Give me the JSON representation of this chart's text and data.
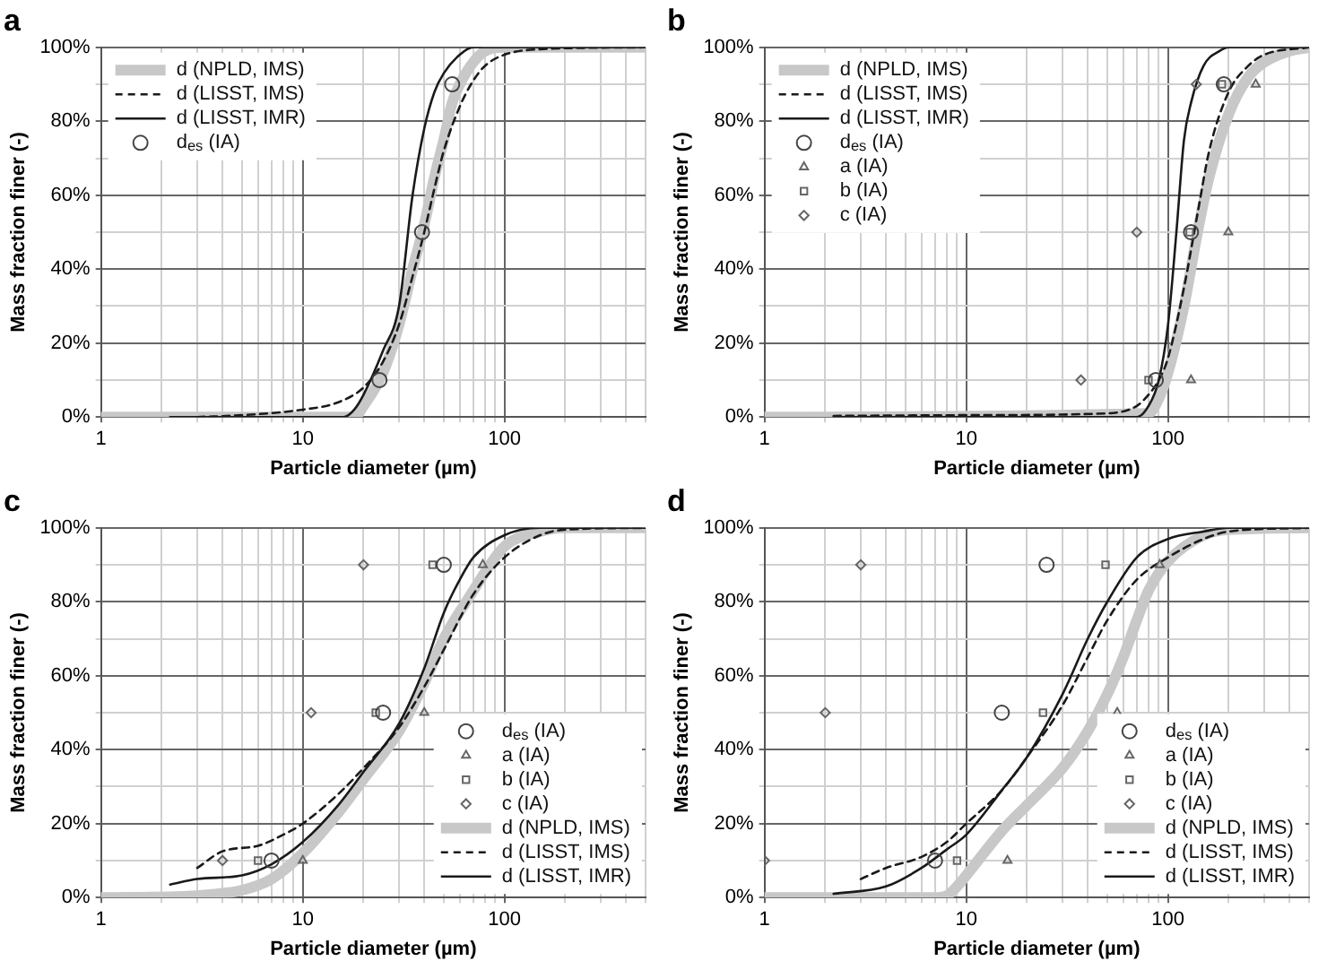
{
  "chart_data": [
    {
      "type": "line",
      "title": "a",
      "xlabel": "Particle diameter (µm)",
      "ylabel": "Mass fraction finer (-)",
      "log": "x",
      "grid": true,
      "legend": "top left",
      "xlim": [
        1,
        500
      ],
      "ylim": [
        0,
        100
      ],
      "xticks": [
        1,
        {
          "value": 2,
          "label": null
        },
        {
          "value": 3,
          "label": null
        },
        {
          "value": 4,
          "label": null
        },
        {
          "value": 5,
          "label": null
        },
        {
          "value": 6,
          "label": null
        },
        {
          "value": 7,
          "label": null
        },
        {
          "value": 8,
          "label": null
        },
        {
          "value": 9,
          "label": null
        },
        10,
        {
          "value": 20,
          "label": null
        },
        {
          "value": 30,
          "label": null
        },
        {
          "value": 40,
          "label": null
        },
        {
          "value": 50,
          "label": null
        },
        {
          "value": 60,
          "label": null
        },
        {
          "value": 70,
          "label": null
        },
        {
          "value": 80,
          "label": null
        },
        {
          "value": 90,
          "label": null
        },
        100,
        {
          "value": 200,
          "label": null
        },
        {
          "value": 300,
          "label": null
        },
        {
          "value": 400,
          "label": null
        },
        {
          "value": 500,
          "label": null
        }
      ],
      "yticks": [
        {
          "value": 0,
          "label": "0%"
        },
        {
          "value": 10,
          "label": null
        },
        {
          "value": 20,
          "label": "20%"
        },
        {
          "value": 30,
          "label": null
        },
        {
          "value": 40,
          "label": "40%"
        },
        {
          "value": 50,
          "label": null
        },
        {
          "value": 60,
          "label": "60%"
        },
        {
          "value": 70,
          "label": null
        },
        {
          "value": 80,
          "label": "80%"
        },
        {
          "value": 90,
          "label": null
        },
        {
          "value": 100,
          "label": "100%"
        }
      ],
      "series": [
        {
          "name": "d (NPLD, IMS)",
          "type": "line",
          "marker": "none",
          "line_style": "solid",
          "color": "#c8c8c8",
          "x": [
            1,
            18,
            20,
            25,
            30,
            35,
            40,
            45,
            50,
            55,
            60,
            70,
            80,
            100,
            500
          ],
          "values": [
            0,
            0,
            3,
            12,
            25,
            40,
            52,
            65,
            75,
            85,
            90,
            96,
            99,
            100,
            100
          ]
        },
        {
          "name": "d (LISST, IMS)",
          "type": "line",
          "marker": "none",
          "line_style": "dashed",
          "color": "#1a1a1a",
          "x": [
            3,
            5,
            10,
            15,
            20,
            25,
            30,
            35,
            40,
            45,
            50,
            60,
            70,
            80,
            100,
            150,
            500
          ],
          "values": [
            0,
            0.5,
            2,
            4,
            8,
            15,
            25,
            38,
            50,
            62,
            72,
            84,
            91,
            95,
            98,
            99.5,
            100
          ]
        },
        {
          "name": "d (LISST, IMR)",
          "type": "line",
          "marker": "none",
          "line_style": "solid",
          "color": "#1a1a1a",
          "x": [
            2.2,
            16,
            18,
            20,
            25,
            30,
            35,
            40,
            45,
            50,
            60,
            70,
            500
          ],
          "values": [
            0,
            0,
            2,
            6,
            18,
            30,
            60,
            78,
            88,
            93,
            98,
            100,
            100
          ]
        },
        {
          "name": "d$_{es}$ (IA)",
          "type": "scatter",
          "marker": "circle",
          "color": "#444444",
          "x": [
            24,
            39,
            55
          ],
          "values": [
            10,
            50,
            90
          ]
        }
      ]
    },
    {
      "type": "line",
      "title": "b",
      "xlabel": "Particle diameter (µm)",
      "ylabel": "Mass fraction finer (-)",
      "log": "x",
      "grid": true,
      "legend": "top left",
      "xlim": [
        1,
        500
      ],
      "ylim": [
        0,
        100
      ],
      "xticks": [
        1,
        {
          "value": 2,
          "label": null
        },
        {
          "value": 3,
          "label": null
        },
        {
          "value": 4,
          "label": null
        },
        {
          "value": 5,
          "label": null
        },
        {
          "value": 6,
          "label": null
        },
        {
          "value": 7,
          "label": null
        },
        {
          "value": 8,
          "label": null
        },
        {
          "value": 9,
          "label": null
        },
        10,
        {
          "value": 20,
          "label": null
        },
        {
          "value": 30,
          "label": null
        },
        {
          "value": 40,
          "label": null
        },
        {
          "value": 50,
          "label": null
        },
        {
          "value": 60,
          "label": null
        },
        {
          "value": 70,
          "label": null
        },
        {
          "value": 80,
          "label": null
        },
        {
          "value": 90,
          "label": null
        },
        100,
        {
          "value": 200,
          "label": null
        },
        {
          "value": 300,
          "label": null
        },
        {
          "value": 400,
          "label": null
        },
        {
          "value": 500,
          "label": null
        }
      ],
      "yticks": [
        {
          "value": 0,
          "label": "0%"
        },
        {
          "value": 10,
          "label": null
        },
        {
          "value": 20,
          "label": "20%"
        },
        {
          "value": 30,
          "label": null
        },
        {
          "value": 40,
          "label": "40%"
        },
        {
          "value": 50,
          "label": null
        },
        {
          "value": 60,
          "label": "60%"
        },
        {
          "value": 70,
          "label": null
        },
        {
          "value": 80,
          "label": "80%"
        },
        {
          "value": 90,
          "label": null
        },
        {
          "value": 100,
          "label": "100%"
        }
      ],
      "series": [
        {
          "name": "d (NPLD, IMS)",
          "type": "line",
          "marker": "none",
          "line_style": "solid",
          "color": "#c8c8c8",
          "x": [
            1,
            80,
            90,
            100,
            120,
            140,
            160,
            200,
            250,
            300,
            400,
            500
          ],
          "values": [
            0,
            1,
            5,
            12,
            30,
            50,
            65,
            82,
            92,
            96,
            99,
            100
          ]
        },
        {
          "name": "d (LISST, IMS)",
          "type": "line",
          "marker": "none",
          "line_style": "dashed",
          "color": "#1a1a1a",
          "x": [
            2.2,
            10,
            50,
            70,
            80,
            90,
            100,
            120,
            140,
            160,
            200,
            250,
            300,
            500
          ],
          "values": [
            0.3,
            0.5,
            1,
            3,
            6,
            10,
            16,
            35,
            55,
            72,
            88,
            95,
            98,
            100
          ]
        },
        {
          "name": "d (LISST, IMR)",
          "type": "line",
          "marker": "none",
          "line_style": "solid",
          "color": "#1a1a1a",
          "x": [
            2.2,
            70,
            80,
            90,
            100,
            110,
            120,
            130,
            150,
            180,
            200,
            500
          ],
          "values": [
            0,
            0,
            3,
            10,
            25,
            50,
            75,
            85,
            95,
            99,
            100,
            100
          ]
        },
        {
          "name": "d$_{es}$ (IA)",
          "type": "scatter",
          "marker": "circle",
          "color": "#444444",
          "x": [
            87,
            130,
            189
          ],
          "values": [
            10,
            50,
            90
          ]
        },
        {
          "name": "a (IA)",
          "type": "scatter",
          "marker": "triangle",
          "color": "#666666",
          "x": [
            130,
            199,
            272
          ],
          "values": [
            10,
            50,
            90
          ]
        },
        {
          "name": "b (IA)",
          "type": "scatter",
          "marker": "square",
          "color": "#666666",
          "x": [
            80,
            128,
            185
          ],
          "values": [
            10,
            50,
            90
          ]
        },
        {
          "name": "c (IA)",
          "type": "scatter",
          "marker": "diamond",
          "color": "#666666",
          "x": [
            37,
            70,
            138
          ],
          "values": [
            10,
            50,
            90
          ]
        }
      ]
    },
    {
      "type": "line",
      "title": "c",
      "xlabel": "Particle diameter (µm)",
      "ylabel": "Mass fraction finer (-)",
      "log": "x",
      "grid": true,
      "legend": "bottom right",
      "xlim": [
        1,
        500
      ],
      "ylim": [
        0,
        100
      ],
      "xticks": [
        1,
        {
          "value": 2,
          "label": null
        },
        {
          "value": 3,
          "label": null
        },
        {
          "value": 4,
          "label": null
        },
        {
          "value": 5,
          "label": null
        },
        {
          "value": 6,
          "label": null
        },
        {
          "value": 7,
          "label": null
        },
        {
          "value": 8,
          "label": null
        },
        {
          "value": 9,
          "label": null
        },
        10,
        {
          "value": 20,
          "label": null
        },
        {
          "value": 30,
          "label": null
        },
        {
          "value": 40,
          "label": null
        },
        {
          "value": 50,
          "label": null
        },
        {
          "value": 60,
          "label": null
        },
        {
          "value": 70,
          "label": null
        },
        {
          "value": 80,
          "label": null
        },
        {
          "value": 90,
          "label": null
        },
        100,
        {
          "value": 200,
          "label": null
        },
        {
          "value": 300,
          "label": null
        },
        {
          "value": 400,
          "label": null
        },
        {
          "value": 500,
          "label": null
        }
      ],
      "yticks": [
        {
          "value": 0,
          "label": "0%"
        },
        {
          "value": 10,
          "label": null
        },
        {
          "value": 20,
          "label": "20%"
        },
        {
          "value": 30,
          "label": null
        },
        {
          "value": 40,
          "label": "40%"
        },
        {
          "value": 50,
          "label": null
        },
        {
          "value": 60,
          "label": "60%"
        },
        {
          "value": 70,
          "label": null
        },
        {
          "value": 80,
          "label": "80%"
        },
        {
          "value": 90,
          "label": null
        },
        {
          "value": 100,
          "label": "100%"
        }
      ],
      "series": [
        {
          "name": "d$_{es}$ (IA)",
          "type": "scatter",
          "marker": "circle",
          "color": "#444444",
          "x": [
            7,
            25,
            50
          ],
          "values": [
            10,
            50,
            90
          ]
        },
        {
          "name": "a (IA)",
          "type": "scatter",
          "marker": "triangle",
          "color": "#666666",
          "x": [
            10,
            40,
            78
          ],
          "values": [
            10,
            50,
            90
          ]
        },
        {
          "name": "b (IA)",
          "type": "scatter",
          "marker": "square",
          "color": "#666666",
          "x": [
            6,
            23,
            44
          ],
          "values": [
            10,
            50,
            90
          ]
        },
        {
          "name": "c (IA)",
          "type": "scatter",
          "marker": "diamond",
          "color": "#666666",
          "x": [
            4,
            11,
            20
          ],
          "values": [
            10,
            50,
            90
          ]
        },
        {
          "name": "d (NPLD, IMS)",
          "type": "line",
          "marker": "none",
          "line_style": "solid",
          "color": "#c8c8c8",
          "x": [
            1,
            3,
            5,
            7,
            10,
            15,
            20,
            30,
            40,
            50,
            70,
            80,
            100,
            150,
            200,
            500
          ],
          "values": [
            0,
            0.5,
            2,
            5,
            12,
            23,
            32,
            45,
            58,
            70,
            83,
            88,
            95,
            99,
            100,
            100
          ]
        },
        {
          "name": "d (LISST, IMS)",
          "type": "line",
          "marker": "none",
          "line_style": "dashed",
          "color": "#1a1a1a",
          "x": [
            3,
            4,
            6,
            8,
            10,
            15,
            20,
            30,
            40,
            50,
            70,
            100,
            150,
            200,
            500
          ],
          "values": [
            8,
            12.5,
            14,
            17,
            20,
            28,
            35,
            46,
            57,
            67,
            82,
            92,
            98,
            99.5,
            100
          ]
        },
        {
          "name": "d (LISST, IMR)",
          "type": "line",
          "marker": "none",
          "line_style": "solid",
          "color": "#1a1a1a",
          "x": [
            2.2,
            3,
            5,
            7,
            10,
            15,
            20,
            30,
            40,
            50,
            60,
            70,
            100,
            150,
            500
          ],
          "values": [
            3.5,
            5,
            6,
            9,
            15,
            25,
            34,
            47,
            62,
            77,
            86,
            92,
            98,
            100,
            100
          ]
        }
      ]
    },
    {
      "type": "line",
      "title": "d",
      "xlabel": "Particle diameter (µm)",
      "ylabel": "Mass fraction finer (-)",
      "log": "x",
      "grid": true,
      "legend": "bottom right",
      "xlim": [
        1,
        500
      ],
      "ylim": [
        0,
        100
      ],
      "xticks": [
        1,
        {
          "value": 2,
          "label": null
        },
        {
          "value": 3,
          "label": null
        },
        {
          "value": 4,
          "label": null
        },
        {
          "value": 5,
          "label": null
        },
        {
          "value": 6,
          "label": null
        },
        {
          "value": 7,
          "label": null
        },
        {
          "value": 8,
          "label": null
        },
        {
          "value": 9,
          "label": null
        },
        10,
        {
          "value": 20,
          "label": null
        },
        {
          "value": 30,
          "label": null
        },
        {
          "value": 40,
          "label": null
        },
        {
          "value": 50,
          "label": null
        },
        {
          "value": 60,
          "label": null
        },
        {
          "value": 70,
          "label": null
        },
        {
          "value": 80,
          "label": null
        },
        {
          "value": 90,
          "label": null
        },
        100,
        {
          "value": 200,
          "label": null
        },
        {
          "value": 300,
          "label": null
        },
        {
          "value": 400,
          "label": null
        },
        {
          "value": 500,
          "label": null
        }
      ],
      "yticks": [
        {
          "value": 0,
          "label": "0%"
        },
        {
          "value": 10,
          "label": null
        },
        {
          "value": 20,
          "label": "20%"
        },
        {
          "value": 30,
          "label": null
        },
        {
          "value": 40,
          "label": "40%"
        },
        {
          "value": 50,
          "label": null
        },
        {
          "value": 60,
          "label": "60%"
        },
        {
          "value": 70,
          "label": null
        },
        {
          "value": 80,
          "label": "80%"
        },
        {
          "value": 90,
          "label": null
        },
        {
          "value": 100,
          "label": "100%"
        }
      ],
      "series": [
        {
          "name": "d$_{es}$ (IA)",
          "type": "scatter",
          "marker": "circle",
          "color": "#444444",
          "x": [
            7,
            15,
            25
          ],
          "values": [
            10,
            50,
            90
          ]
        },
        {
          "name": "a (IA)",
          "type": "scatter",
          "marker": "triangle",
          "color": "#666666",
          "x": [
            16,
            56,
            91
          ],
          "values": [
            10,
            50,
            90
          ]
        },
        {
          "name": "b (IA)",
          "type": "scatter",
          "marker": "square",
          "color": "#666666",
          "x": [
            9,
            24,
            49
          ],
          "values": [
            10,
            50,
            90
          ]
        },
        {
          "name": "c (IA)",
          "type": "scatter",
          "marker": "diamond",
          "color": "#666666",
          "x": [
            1,
            2,
            3
          ],
          "values": [
            10,
            50,
            90
          ]
        },
        {
          "name": "d (NPLD, IMS)",
          "type": "line",
          "marker": "none",
          "line_style": "solid",
          "color": "#c8c8c8",
          "x": [
            1,
            7,
            8,
            9,
            10,
            15,
            20,
            30,
            40,
            50,
            60,
            70,
            80,
            100,
            150,
            200,
            500
          ],
          "values": [
            0,
            0,
            0.5,
            3,
            6,
            18,
            25,
            35,
            45,
            55,
            65,
            75,
            83,
            91,
            98,
            99.5,
            100
          ]
        },
        {
          "name": "d (LISST, IMS)",
          "type": "line",
          "marker": "none",
          "line_style": "dashed",
          "color": "#1a1a1a",
          "x": [
            3,
            4,
            6,
            8,
            10,
            15,
            20,
            30,
            40,
            50,
            70,
            100,
            150,
            200,
            500
          ],
          "values": [
            5,
            8,
            11,
            15,
            20,
            29,
            38,
            52,
            65,
            75,
            86,
            92,
            97,
            99,
            100
          ]
        },
        {
          "name": "d (LISST, IMR)",
          "type": "line",
          "marker": "none",
          "line_style": "solid",
          "color": "#1a1a1a",
          "x": [
            2.2,
            4,
            6,
            8,
            10,
            15,
            20,
            30,
            40,
            50,
            70,
            100,
            150,
            200,
            500
          ],
          "values": [
            1,
            3,
            8,
            13,
            17,
            29,
            38,
            55,
            70,
            80,
            92,
            97,
            99,
            100,
            100
          ]
        }
      ]
    }
  ]
}
